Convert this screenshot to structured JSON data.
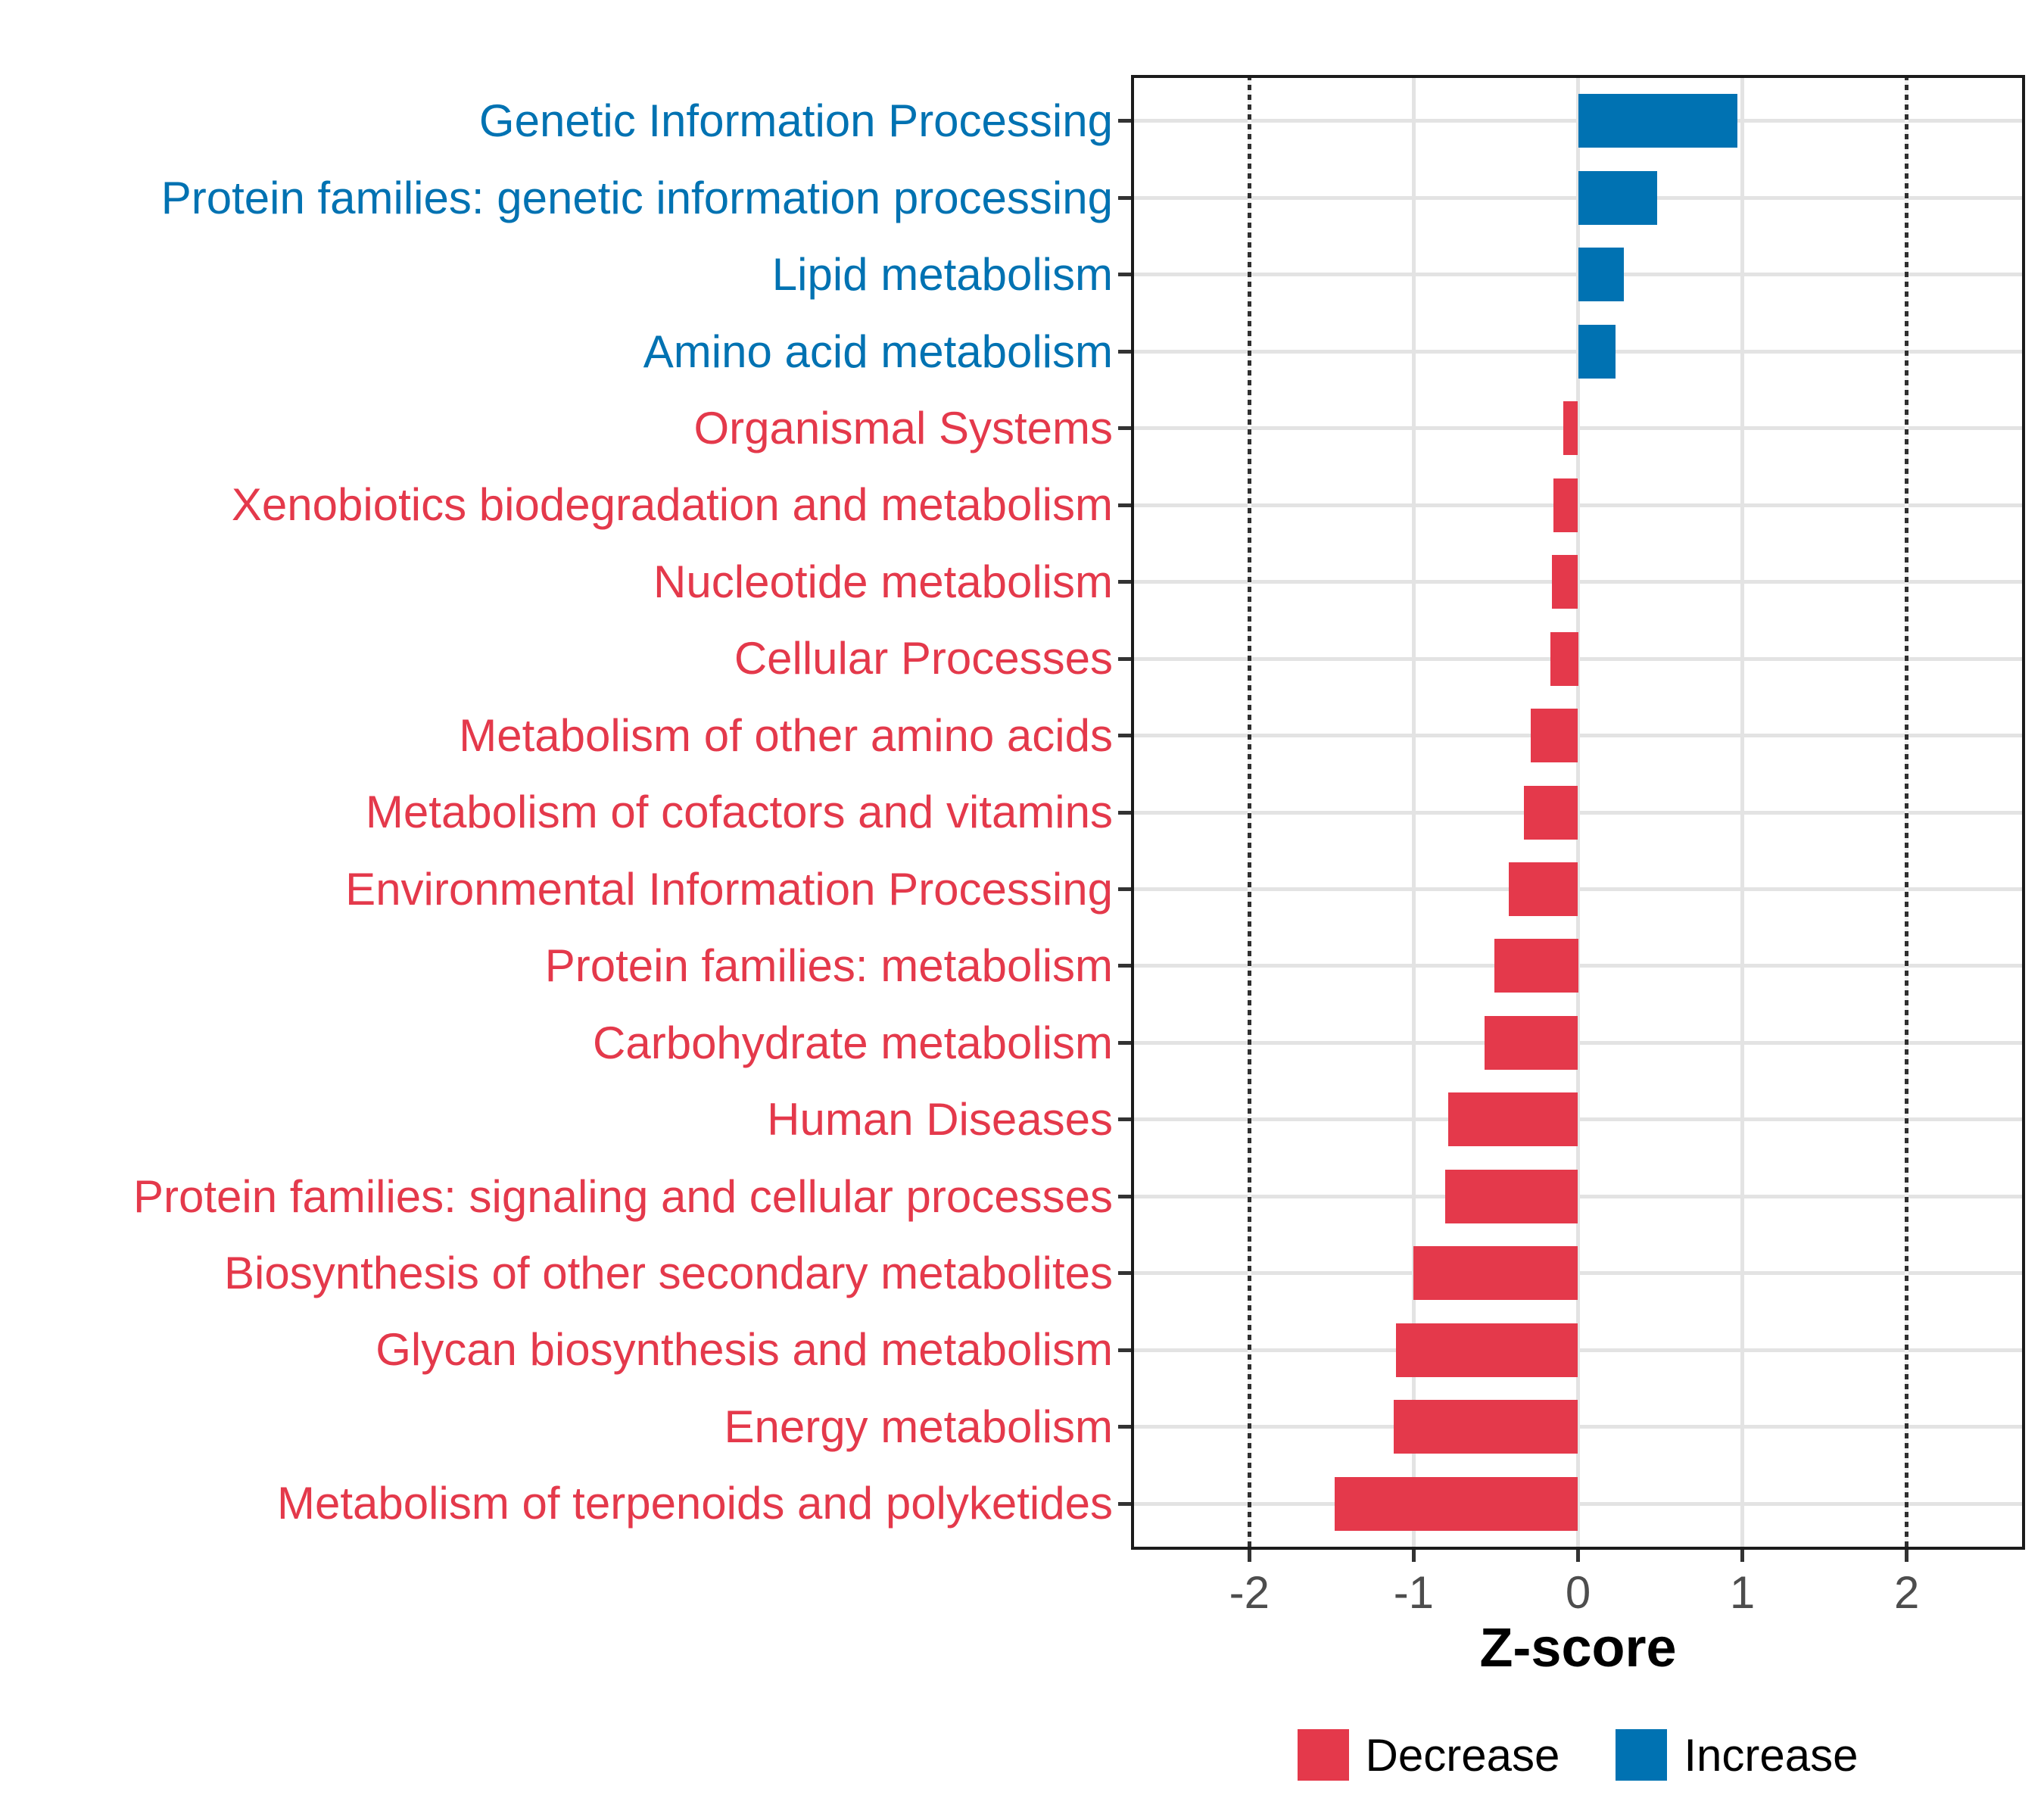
{
  "chart_data": {
    "type": "bar",
    "orientation": "horizontal",
    "title": "",
    "xlabel": "Z-score",
    "ylabel": "",
    "categories": [
      "Genetic Information Processing",
      "Protein families: genetic information processing",
      "Lipid metabolism",
      "Amino acid metabolism",
      "Organismal Systems",
      "Xenobiotics biodegradation and metabolism",
      "Nucleotide metabolism",
      "Cellular Processes",
      "Metabolism of other amino acids",
      "Metabolism of cofactors and vitamins",
      "Environmental Information Processing",
      "Protein families: metabolism",
      "Carbohydrate metabolism",
      "Human Diseases",
      "Protein families: signaling and cellular processes",
      "Biosynthesis of other secondary metabolites",
      "Glycan biosynthesis and metabolism",
      "Energy metabolism",
      "Metabolism of terpenoids and polyketides"
    ],
    "values": [
      0.97,
      0.48,
      0.28,
      0.23,
      -0.09,
      -0.15,
      -0.16,
      -0.17,
      -0.29,
      -0.33,
      -0.42,
      -0.51,
      -0.57,
      -0.79,
      -0.81,
      -1.0,
      -1.11,
      -1.12,
      -1.48
    ],
    "directions": [
      "Increase",
      "Increase",
      "Increase",
      "Increase",
      "Decrease",
      "Decrease",
      "Decrease",
      "Decrease",
      "Decrease",
      "Decrease",
      "Decrease",
      "Decrease",
      "Decrease",
      "Decrease",
      "Decrease",
      "Decrease",
      "Decrease",
      "Decrease",
      "Decrease"
    ],
    "colors": {
      "Increase": "#0072B2",
      "Decrease": "#E4394B"
    },
    "xlim": [
      -2.72,
      2.72
    ],
    "x_ticks": [
      -2,
      -1,
      0,
      1,
      2
    ],
    "x_tick_labels": [
      "-2",
      "-1",
      "0",
      "1",
      "2"
    ],
    "reference_lines": [
      -2,
      2
    ],
    "grid": "major-xy",
    "bar_width_fraction": 0.7,
    "legend": {
      "position": "bottom",
      "items": [
        {
          "label": "Decrease",
          "color": "#E4394B"
        },
        {
          "label": "Increase",
          "color": "#0072B2"
        }
      ]
    }
  }
}
